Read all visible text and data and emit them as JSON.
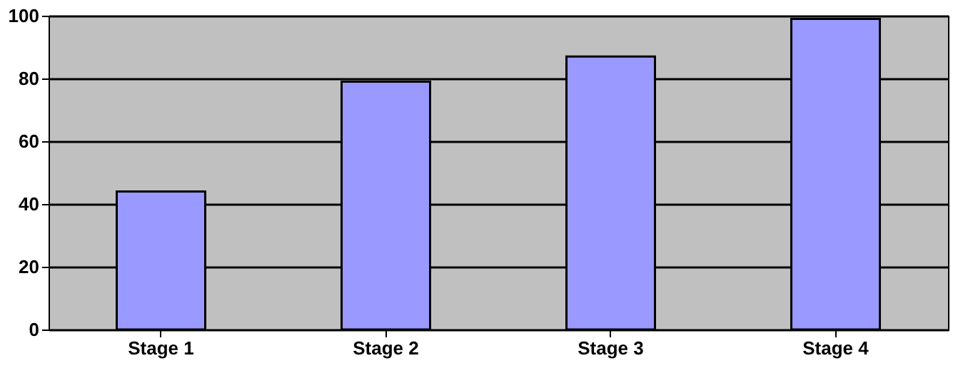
{
  "chart_data": {
    "type": "bar",
    "categories": [
      "Stage 1",
      "Stage 2",
      "Stage 3",
      "Stage 4"
    ],
    "values": [
      44,
      79,
      87,
      99
    ],
    "color": "#9999ff",
    "ylim": [
      0,
      100
    ],
    "yticks": [
      0,
      20,
      40,
      60,
      80,
      100
    ],
    "grid": "y"
  }
}
